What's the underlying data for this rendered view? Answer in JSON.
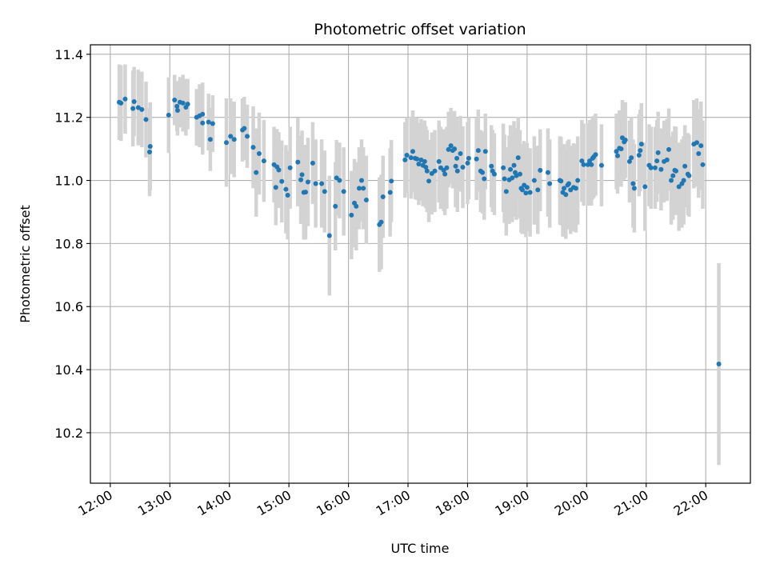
{
  "chart_data": {
    "type": "scatter",
    "title": "Photometric offset variation",
    "xlabel": "UTC time",
    "ylabel": "Photometric offset",
    "x_unit": "hours UTC",
    "xlim": [
      11.666,
      22.75
    ],
    "ylim": [
      10.04,
      11.43
    ],
    "grid": true,
    "x_ticks": [
      {
        "value": 12,
        "label": "12:00"
      },
      {
        "value": 13,
        "label": "13:00"
      },
      {
        "value": 14,
        "label": "14:00"
      },
      {
        "value": 15,
        "label": "15:00"
      },
      {
        "value": 16,
        "label": "16:00"
      },
      {
        "value": 17,
        "label": "17:00"
      },
      {
        "value": 18,
        "label": "18:00"
      },
      {
        "value": 19,
        "label": "19:00"
      },
      {
        "value": 20,
        "label": "20:00"
      },
      {
        "value": 21,
        "label": "21:00"
      },
      {
        "value": 22,
        "label": "22:00"
      }
    ],
    "y_ticks": [
      {
        "value": 10.2,
        "label": "10.2"
      },
      {
        "value": 10.4,
        "label": "10.4"
      },
      {
        "value": 10.6,
        "label": "10.6"
      },
      {
        "value": 10.8,
        "label": "10.8"
      },
      {
        "value": 11.0,
        "label": "11.0"
      },
      {
        "value": 11.2,
        "label": "11.2"
      },
      {
        "value": 11.4,
        "label": "11.4"
      }
    ],
    "colors": {
      "point": "#1f77b4",
      "errorbar": "#d3d3d3",
      "grid": "#b0b0b0"
    },
    "points": [
      [
        12.15,
        11.248,
        0.12
      ],
      [
        12.18,
        11.245,
        0.12
      ],
      [
        12.25,
        11.258,
        0.11
      ],
      [
        12.38,
        11.228,
        0.12
      ],
      [
        12.4,
        11.25,
        0.11
      ],
      [
        12.47,
        11.231,
        0.12
      ],
      [
        12.53,
        11.225,
        0.12
      ],
      [
        12.6,
        11.193,
        0.12
      ],
      [
        12.66,
        11.09,
        0.14
      ],
      [
        12.67,
        11.108,
        0.14
      ],
      [
        12.98,
        11.207,
        0.12
      ],
      [
        13.08,
        11.255,
        0.08
      ],
      [
        13.12,
        11.235,
        0.08
      ],
      [
        13.13,
        11.222,
        0.08
      ],
      [
        13.17,
        11.248,
        0.08
      ],
      [
        13.22,
        11.245,
        0.09
      ],
      [
        13.27,
        11.232,
        0.09
      ],
      [
        13.3,
        11.242,
        0.08
      ],
      [
        13.45,
        11.2,
        0.09
      ],
      [
        13.5,
        11.205,
        0.1
      ],
      [
        13.55,
        11.182,
        0.1
      ],
      [
        13.55,
        11.21,
        0.1
      ],
      [
        13.65,
        11.185,
        0.09
      ],
      [
        13.68,
        11.13,
        0.1
      ],
      [
        13.72,
        11.18,
        0.09
      ],
      [
        13.95,
        11.12,
        0.14
      ],
      [
        14.02,
        11.14,
        0.12
      ],
      [
        14.08,
        11.13,
        0.12
      ],
      [
        14.22,
        11.16,
        0.1
      ],
      [
        14.25,
        11.165,
        0.1
      ],
      [
        14.3,
        11.14,
        0.1
      ],
      [
        14.4,
        11.105,
        0.13
      ],
      [
        14.45,
        11.025,
        0.14
      ],
      [
        14.5,
        11.085,
        0.13
      ],
      [
        14.58,
        11.062,
        0.13
      ],
      [
        14.75,
        11.05,
        0.12
      ],
      [
        14.78,
        10.978,
        0.12
      ],
      [
        14.8,
        11.043,
        0.12
      ],
      [
        14.83,
        11.033,
        0.12
      ],
      [
        14.88,
        10.997,
        0.13
      ],
      [
        14.95,
        10.972,
        0.14
      ],
      [
        14.98,
        10.953,
        0.14
      ],
      [
        15.02,
        11.04,
        0.13
      ],
      [
        15.15,
        11.058,
        0.14
      ],
      [
        15.2,
        11.002,
        0.14
      ],
      [
        15.22,
        11.018,
        0.14
      ],
      [
        15.25,
        10.962,
        0.15
      ],
      [
        15.28,
        10.963,
        0.15
      ],
      [
        15.32,
        10.995,
        0.14
      ],
      [
        15.4,
        11.055,
        0.13
      ],
      [
        15.45,
        10.99,
        0.14
      ],
      [
        15.55,
        10.99,
        0.14
      ],
      [
        15.6,
        10.965,
        0.13
      ],
      [
        15.68,
        10.825,
        0.19
      ],
      [
        15.78,
        10.918,
        0.14
      ],
      [
        15.8,
        11.008,
        0.12
      ],
      [
        15.85,
        11.0,
        0.12
      ],
      [
        15.92,
        10.965,
        0.14
      ],
      [
        16.05,
        10.89,
        0.14
      ],
      [
        16.1,
        10.928,
        0.14
      ],
      [
        16.13,
        10.918,
        0.14
      ],
      [
        16.18,
        10.975,
        0.13
      ],
      [
        16.22,
        11.0,
        0.13
      ],
      [
        16.25,
        10.975,
        0.13
      ],
      [
        16.3,
        10.938,
        0.14
      ],
      [
        16.52,
        10.86,
        0.15
      ],
      [
        16.55,
        10.868,
        0.15
      ],
      [
        16.58,
        10.948,
        0.13
      ],
      [
        16.7,
        10.962,
        0.14
      ],
      [
        16.72,
        10.998,
        0.13
      ],
      [
        16.95,
        11.065,
        0.12
      ],
      [
        16.98,
        11.08,
        0.12
      ],
      [
        17.05,
        11.072,
        0.13
      ],
      [
        17.08,
        11.092,
        0.13
      ],
      [
        17.12,
        11.07,
        0.13
      ],
      [
        17.15,
        11.068,
        0.13
      ],
      [
        17.18,
        11.052,
        0.13
      ],
      [
        17.22,
        11.065,
        0.13
      ],
      [
        17.25,
        11.048,
        0.13
      ],
      [
        17.28,
        11.06,
        0.13
      ],
      [
        17.3,
        11.042,
        0.13
      ],
      [
        17.32,
        11.03,
        0.13
      ],
      [
        17.35,
        10.998,
        0.13
      ],
      [
        17.4,
        11.022,
        0.13
      ],
      [
        17.45,
        11.03,
        0.13
      ],
      [
        17.52,
        11.06,
        0.13
      ],
      [
        17.55,
        11.04,
        0.13
      ],
      [
        17.6,
        11.032,
        0.13
      ],
      [
        17.62,
        11.02,
        0.13
      ],
      [
        17.65,
        11.04,
        0.13
      ],
      [
        17.68,
        11.098,
        0.12
      ],
      [
        17.72,
        11.11,
        0.12
      ],
      [
        17.75,
        11.095,
        0.12
      ],
      [
        17.78,
        11.1,
        0.12
      ],
      [
        17.8,
        11.045,
        0.13
      ],
      [
        17.82,
        11.07,
        0.13
      ],
      [
        17.83,
        11.03,
        0.13
      ],
      [
        17.88,
        11.085,
        0.12
      ],
      [
        17.92,
        11.042,
        0.13
      ],
      [
        18.0,
        11.055,
        0.13
      ],
      [
        18.02,
        11.07,
        0.13
      ],
      [
        18.15,
        11.068,
        0.13
      ],
      [
        18.18,
        11.095,
        0.13
      ],
      [
        18.22,
        11.03,
        0.13
      ],
      [
        18.25,
        11.025,
        0.13
      ],
      [
        18.28,
        11.005,
        0.13
      ],
      [
        18.3,
        11.092,
        0.12
      ],
      [
        18.4,
        11.045,
        0.13
      ],
      [
        18.42,
        11.03,
        0.13
      ],
      [
        18.45,
        11.02,
        0.13
      ],
      [
        18.6,
        11.04,
        0.14
      ],
      [
        18.62,
        11.005,
        0.14
      ],
      [
        18.65,
        10.965,
        0.14
      ],
      [
        18.7,
        11.002,
        0.14
      ],
      [
        18.72,
        11.035,
        0.14
      ],
      [
        18.75,
        11.008,
        0.14
      ],
      [
        18.78,
        11.048,
        0.14
      ],
      [
        18.8,
        11.025,
        0.14
      ],
      [
        18.82,
        11.015,
        0.14
      ],
      [
        18.85,
        11.072,
        0.13
      ],
      [
        18.88,
        11.02,
        0.14
      ],
      [
        18.9,
        10.975,
        0.14
      ],
      [
        18.92,
        10.97,
        0.14
      ],
      [
        18.95,
        10.985,
        0.14
      ],
      [
        18.98,
        10.96,
        0.14
      ],
      [
        19.0,
        10.978,
        0.14
      ],
      [
        19.05,
        10.962,
        0.14
      ],
      [
        19.12,
        11.0,
        0.14
      ],
      [
        19.18,
        10.97,
        0.14
      ],
      [
        19.22,
        11.032,
        0.13
      ],
      [
        19.35,
        11.025,
        0.14
      ],
      [
        19.38,
        10.99,
        0.14
      ],
      [
        19.55,
        11.0,
        0.14
      ],
      [
        19.57,
        10.998,
        0.14
      ],
      [
        19.6,
        10.962,
        0.14
      ],
      [
        19.62,
        10.975,
        0.14
      ],
      [
        19.65,
        10.955,
        0.14
      ],
      [
        19.68,
        10.985,
        0.14
      ],
      [
        19.7,
        10.99,
        0.14
      ],
      [
        19.73,
        10.97,
        0.14
      ],
      [
        19.78,
        10.978,
        0.14
      ],
      [
        19.82,
        10.975,
        0.14
      ],
      [
        19.85,
        11.0,
        0.14
      ],
      [
        19.92,
        11.062,
        0.13
      ],
      [
        19.95,
        11.05,
        0.13
      ],
      [
        20.02,
        11.05,
        0.13
      ],
      [
        20.05,
        11.062,
        0.13
      ],
      [
        20.08,
        11.05,
        0.13
      ],
      [
        20.1,
        11.07,
        0.13
      ],
      [
        20.12,
        11.075,
        0.13
      ],
      [
        20.15,
        11.082,
        0.13
      ],
      [
        20.25,
        11.048,
        0.13
      ],
      [
        20.5,
        11.092,
        0.12
      ],
      [
        20.52,
        11.078,
        0.12
      ],
      [
        20.55,
        11.102,
        0.12
      ],
      [
        20.58,
        11.1,
        0.12
      ],
      [
        20.6,
        11.135,
        0.12
      ],
      [
        20.63,
        11.122,
        0.12
      ],
      [
        20.65,
        11.128,
        0.12
      ],
      [
        20.72,
        11.06,
        0.13
      ],
      [
        20.75,
        11.072,
        0.13
      ],
      [
        20.78,
        10.99,
        0.14
      ],
      [
        20.8,
        10.975,
        0.14
      ],
      [
        20.88,
        11.08,
        0.13
      ],
      [
        20.9,
        11.095,
        0.13
      ],
      [
        20.92,
        11.115,
        0.13
      ],
      [
        20.98,
        10.98,
        0.14
      ],
      [
        21.05,
        11.048,
        0.13
      ],
      [
        21.08,
        11.04,
        0.13
      ],
      [
        21.15,
        11.04,
        0.13
      ],
      [
        21.18,
        11.062,
        0.13
      ],
      [
        21.2,
        11.088,
        0.13
      ],
      [
        21.25,
        11.035,
        0.13
      ],
      [
        21.3,
        11.06,
        0.13
      ],
      [
        21.35,
        11.065,
        0.13
      ],
      [
        21.38,
        11.098,
        0.13
      ],
      [
        21.42,
        11.0,
        0.14
      ],
      [
        21.45,
        11.015,
        0.14
      ],
      [
        21.48,
        11.032,
        0.14
      ],
      [
        21.5,
        11.03,
        0.14
      ],
      [
        21.55,
        10.98,
        0.14
      ],
      [
        21.6,
        10.99,
        0.14
      ],
      [
        21.63,
        11.0,
        0.14
      ],
      [
        21.65,
        11.045,
        0.13
      ],
      [
        21.7,
        11.02,
        0.13
      ],
      [
        21.72,
        11.015,
        0.13
      ],
      [
        21.8,
        11.115,
        0.14
      ],
      [
        21.85,
        11.12,
        0.14
      ],
      [
        21.88,
        11.085,
        0.14
      ],
      [
        21.92,
        11.11,
        0.14
      ],
      [
        21.95,
        11.05,
        0.14
      ],
      [
        22.22,
        10.418,
        0.32
      ]
    ]
  }
}
